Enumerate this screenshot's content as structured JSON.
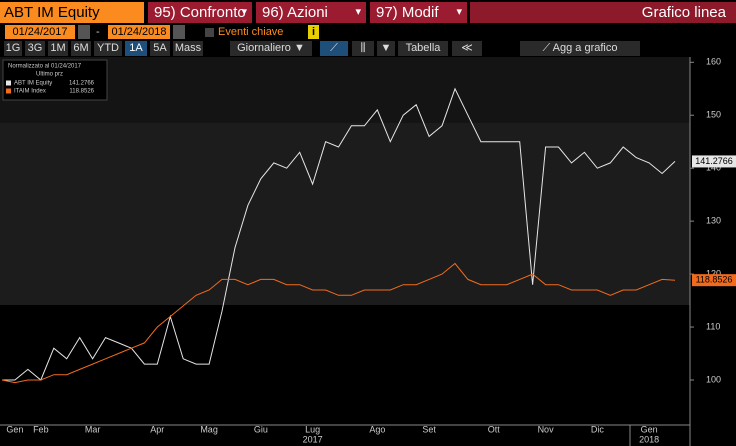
{
  "toolbar": {
    "security": "ABT IM Equity",
    "tabs": [
      "95) Confronto",
      "96) Azioni",
      "97) Modif"
    ],
    "view": "Grafico linea",
    "start_date": "01/24/2017",
    "end_date": "01/24/2018",
    "key_events": "Eventi chiave",
    "periods": [
      "1G",
      "3G",
      "1M",
      "6M",
      "YTD",
      "1A",
      "5A",
      "Mass"
    ],
    "active_period": "1A",
    "frequency": "Giornaliero",
    "table": "Tabella",
    "add_to_chart": "Agg a grafico"
  },
  "chart_data": {
    "type": "line",
    "legend_title": [
      "Normalizzato al 01/24/2017",
      "Ultimo prz"
    ],
    "categories": [
      null,
      "Gen",
      null,
      "Feb",
      null,
      null,
      null,
      "Mar",
      null,
      null,
      null,
      null,
      "Apr",
      null,
      null,
      null,
      "Mag",
      null,
      null,
      null,
      "Giu",
      null,
      null,
      null,
      "Lug",
      null,
      null,
      null,
      null,
      "Ago",
      null,
      null,
      null,
      "Set",
      null,
      null,
      null,
      null,
      "Ott",
      null,
      null,
      null,
      "Nov",
      null,
      null,
      null,
      "Dic",
      null,
      null,
      null,
      "Gen",
      null,
      null
    ],
    "years": [
      null,
      null,
      null,
      null,
      null,
      null,
      null,
      null,
      null,
      null,
      null,
      null,
      null,
      null,
      null,
      null,
      null,
      null,
      null,
      null,
      null,
      null,
      null,
      null,
      "2017",
      null,
      null,
      null,
      null,
      null,
      null,
      null,
      null,
      null,
      null,
      null,
      null,
      null,
      null,
      null,
      null,
      null,
      null,
      null,
      null,
      null,
      null,
      null,
      null,
      null,
      "2018",
      null,
      null
    ],
    "series": [
      {
        "name": "ABT IM Equity",
        "color": "#e6e6e6",
        "values": [
          100,
          100,
          102,
          100,
          106,
          104,
          108,
          104,
          108,
          107,
          106,
          103,
          103,
          112,
          104,
          103,
          103,
          113,
          125,
          133,
          138,
          141,
          140,
          143,
          137,
          145,
          144,
          148,
          148,
          151,
          145,
          150,
          152,
          146,
          148,
          155,
          150,
          145,
          145,
          145,
          145,
          118,
          144,
          144,
          141,
          143,
          140,
          141,
          144,
          142,
          141,
          139,
          141.2766
        ]
      },
      {
        "name": "ITAIM Index",
        "color": "#f26b1d",
        "values": [
          100,
          99.5,
          100,
          100,
          101,
          101,
          102,
          103,
          104,
          105,
          106,
          107,
          110,
          112,
          114,
          116,
          117,
          119,
          119,
          118,
          119,
          119,
          118,
          118,
          117,
          117,
          116,
          116,
          117,
          117,
          117,
          118,
          118,
          119,
          120,
          122,
          119,
          118,
          118,
          118,
          119,
          120,
          118,
          118,
          117,
          117,
          117,
          116,
          117,
          117,
          118,
          119,
          118.8526
        ]
      }
    ],
    "ylim": [
      91.5,
      161
    ],
    "yticks": [
      100,
      110,
      120,
      130,
      140,
      150,
      160
    ]
  }
}
